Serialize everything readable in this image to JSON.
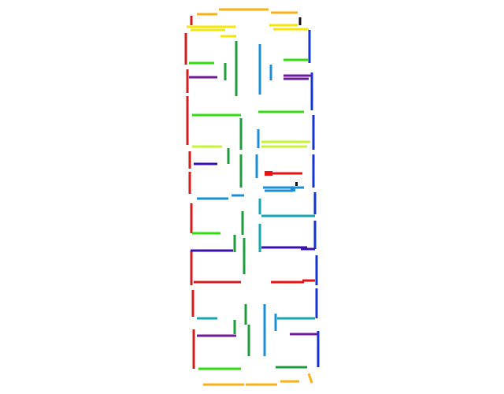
{
  "colors": {
    "yellow": "#f5e60a",
    "orange": "#fbb016",
    "red": "#d21d1d",
    "bright_red": "#ef1010",
    "green": "#1e9c3c",
    "lime": "#33dd11",
    "yellow_green": "#c6f434",
    "light_blue": "#1a8ed8",
    "teal": "#17a6b0",
    "purple": "#6c1b9b",
    "indigo": "#3a10b2",
    "blue": "#1434d6",
    "black": "#111111"
  },
  "legend": []
}
